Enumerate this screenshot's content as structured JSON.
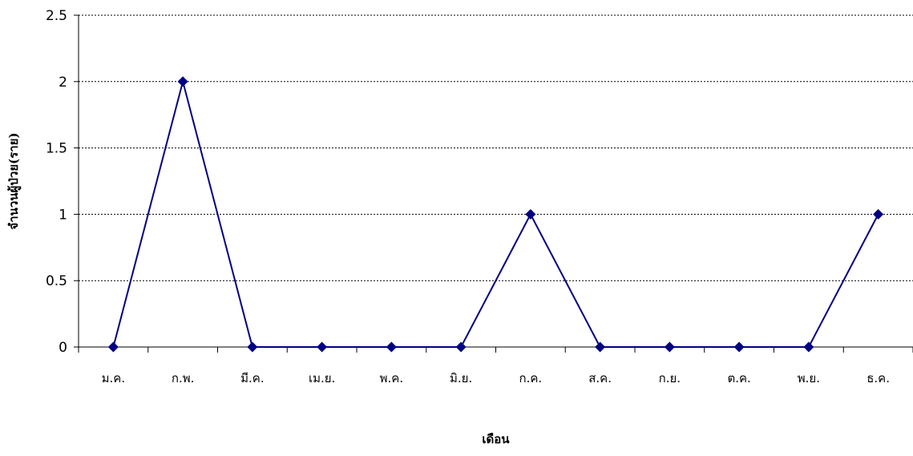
{
  "chart_data": {
    "type": "line",
    "title": "",
    "xlabel": "เดือน",
    "ylabel": "จำนวนผู้ป่วย(ราย)",
    "categories": [
      "ม.ค.",
      "ก.พ.",
      "มี.ค.",
      "เม.ย.",
      "พ.ค.",
      "มิ.ย.",
      "ก.ค.",
      "ส.ค.",
      "ก.ย.",
      "ต.ค.",
      "พ.ย.",
      "ธ.ค."
    ],
    "series": [
      {
        "values": [
          0,
          2,
          0,
          0,
          0,
          0,
          1,
          0,
          0,
          0,
          0,
          1
        ]
      }
    ],
    "ylim": [
      0,
      2.5
    ],
    "yticks": [
      "0",
      "0.5",
      "1",
      "1.5",
      "2",
      "2.5"
    ],
    "grid": true,
    "legend": "none",
    "colors": {
      "series": "#000080",
      "grid": "#000000",
      "axis": "#000000"
    }
  }
}
